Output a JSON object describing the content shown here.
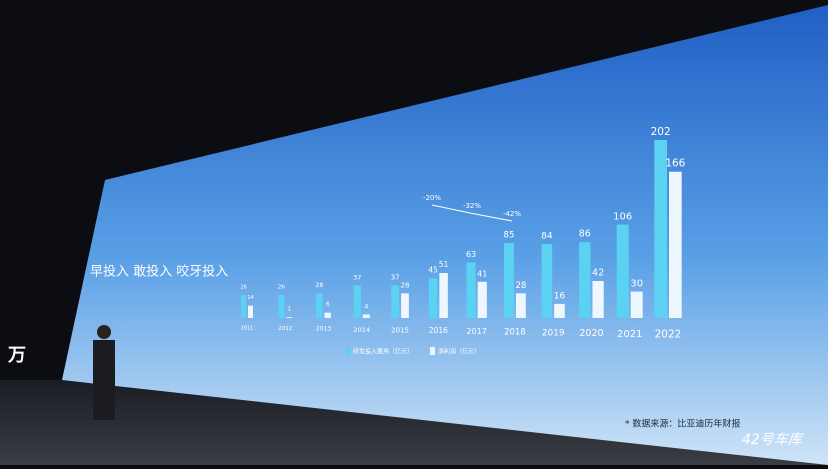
{
  "chart_data": {
    "type": "bar",
    "title": "早投入 敢投入 咬牙投入",
    "categories": [
      "2011",
      "2012",
      "2013",
      "2014",
      "2015",
      "2016",
      "2017",
      "2018",
      "2019",
      "2020",
      "2021",
      "2022"
    ],
    "series": [
      {
        "name": "研发投入费用（亿元）",
        "color": "#5cd2f2",
        "values": [
          26,
          26,
          28,
          37,
          37,
          45,
          63,
          85,
          84,
          86,
          106,
          202
        ]
      },
      {
        "name": "净利润（亿元）",
        "color": "#eef6ff",
        "values": [
          14,
          1,
          6,
          4,
          28,
          51,
          41,
          28,
          16,
          42,
          30,
          166
        ]
      }
    ],
    "annotations": [
      "-20%",
      "-32%",
      "-42%"
    ],
    "footnote": "* 数据来源：比亚迪历年财报"
  },
  "watermark": "42号车库",
  "edge_text": "万"
}
